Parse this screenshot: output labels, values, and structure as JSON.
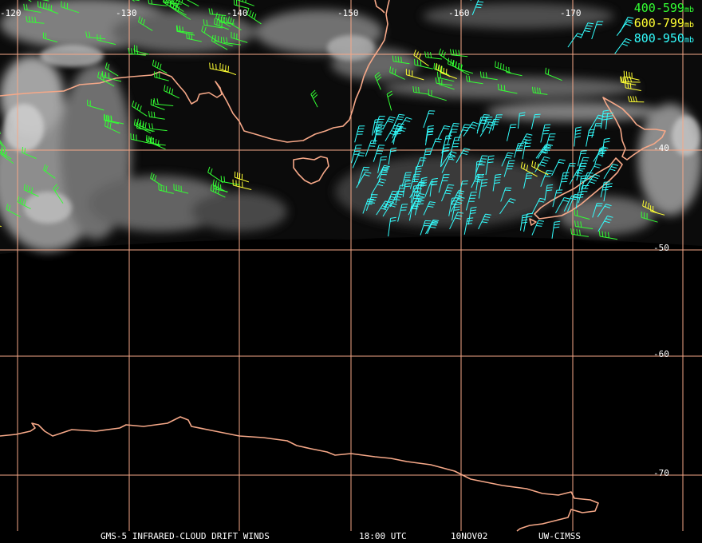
{
  "colors": {
    "grid": "#f6a888",
    "coast": "#f6a888",
    "level_400_599": "#33ff33",
    "level_600_799": "#ffff33",
    "level_800_950": "#33ffff",
    "background": "#000000"
  },
  "longitude_labels": [
    "-120",
    "-130",
    "-140",
    "-150",
    "-160",
    "-170"
  ],
  "latitude_labels": [
    "-40",
    "-50",
    "-60",
    "-70"
  ],
  "legend": [
    {
      "range": "400-599",
      "unit": "mb",
      "color": "#33ff33"
    },
    {
      "range": "600-799",
      "unit": "mb",
      "color": "#ffff33"
    },
    {
      "range": "800-950",
      "unit": "mb",
      "color": "#33ffff"
    }
  ],
  "footer": {
    "product": "GMS-5 INFRARED-CLOUD DRIFT WINDS",
    "time": "18:00 UTC",
    "date": "10NOV02",
    "source": "UW-CIMSS"
  }
}
